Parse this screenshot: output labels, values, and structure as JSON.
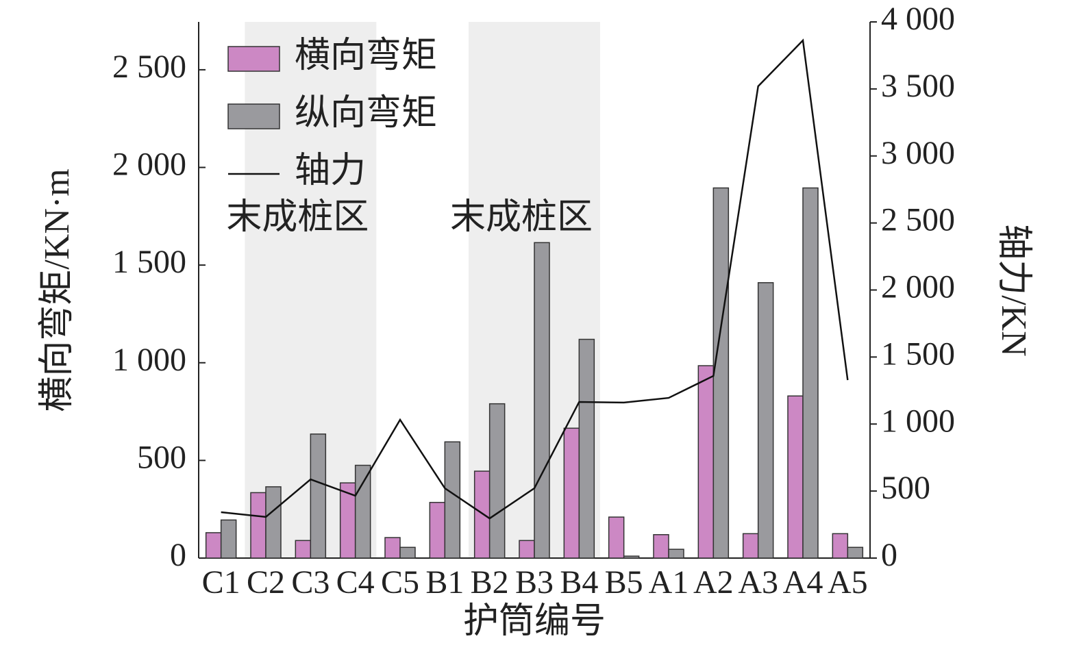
{
  "chart_data": {
    "type": "bar",
    "categories": [
      "C1",
      "C2",
      "C3",
      "C4",
      "C5",
      "B1",
      "B2",
      "B3",
      "B4",
      "B5",
      "A1",
      "A2",
      "A3",
      "A4",
      "A5"
    ],
    "series": [
      {
        "name": "横向弯矩",
        "color": "#cc88c4",
        "values": [
          130,
          335,
          90,
          385,
          105,
          285,
          445,
          90,
          665,
          210,
          120,
          985,
          125,
          830,
          125
        ]
      },
      {
        "name": "纵向弯矩",
        "color": "#9a9a9e",
        "values": [
          195,
          365,
          635,
          475,
          55,
          595,
          790,
          1615,
          1120,
          10,
          45,
          1895,
          1410,
          1895,
          55
        ]
      },
      {
        "name": "轴力",
        "color": "#111111",
        "type": "line",
        "axis": "y2",
        "values": [
          342,
          307,
          587,
          465,
          1032,
          521,
          296,
          521,
          1165,
          1160,
          1195,
          1359,
          3520,
          3862,
          1328
        ]
      }
    ],
    "xlabel": "护筒编号",
    "ylabel": "横向弯矩/KN·m",
    "y2label": "轴力/KN",
    "ylim": [
      0,
      2745
    ],
    "yticks": [
      0,
      500,
      {
        "value": 1000,
        "label": "1 000"
      },
      {
        "value": 1500,
        "label": "1 500"
      },
      {
        "value": 2000,
        "label": "2 000"
      },
      {
        "value": 2500,
        "label": "2 500"
      }
    ],
    "y2lim": [
      0,
      4000
    ],
    "y2ticks": [
      0,
      500,
      {
        "value": 1000,
        "label": "1 000"
      },
      {
        "value": 1500,
        "label": "1 500"
      },
      {
        "value": 2000,
        "label": "2 000"
      },
      {
        "value": 2500,
        "label": "2 500"
      },
      {
        "value": 3000,
        "label": "3 000"
      },
      {
        "value": 3500,
        "label": "3 500"
      },
      {
        "value": 4000,
        "label": "4 000"
      }
    ],
    "shaded_regions": [
      {
        "label": "末成桩区",
        "from": "C2",
        "to": "C4",
        "color": "#eeeeee"
      },
      {
        "label": "末成桩区",
        "from": "B2",
        "to": "B4",
        "color": "#eeeeee"
      }
    ],
    "legend": "upper left",
    "grid": false
  }
}
